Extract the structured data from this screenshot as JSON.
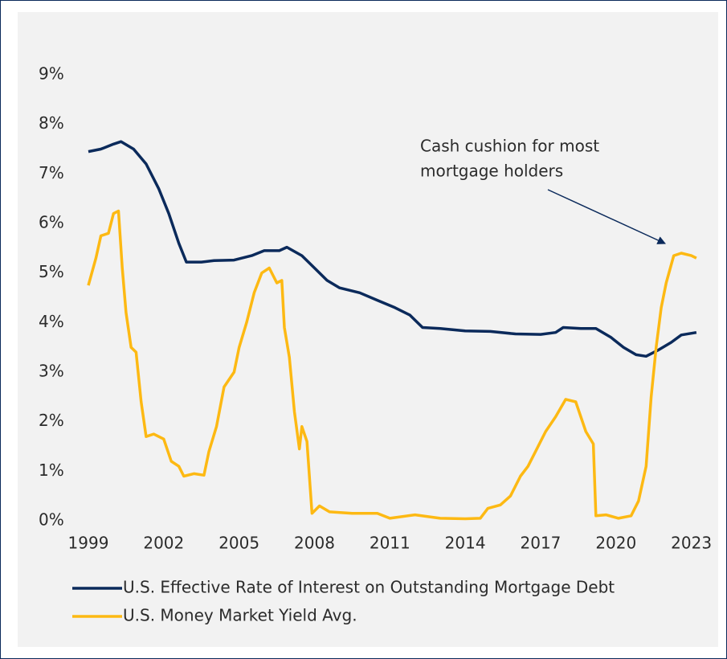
{
  "chart_data": {
    "type": "line",
    "annotation": {
      "lines": [
        "Cash cushion for most",
        "mortgage holders"
      ]
    },
    "xlim": [
      1999,
      2023.3
    ],
    "xticks": [
      1999,
      2002,
      2005,
      2008,
      2011,
      2014,
      2017,
      2020,
      2023
    ],
    "ylim": [
      0,
      9
    ],
    "yticks": [
      {
        "value": 0,
        "label": "0%"
      },
      {
        "value": 1,
        "label": "1%"
      },
      {
        "value": 2,
        "label": "2%"
      },
      {
        "value": 3,
        "label": "3%"
      },
      {
        "value": 4,
        "label": "4%"
      },
      {
        "value": 5,
        "label": "5%"
      },
      {
        "value": 6,
        "label": "6%"
      },
      {
        "value": 7,
        "label": "7%"
      },
      {
        "value": 8,
        "label": "8%"
      },
      {
        "value": 9,
        "label": "9%"
      }
    ],
    "series": [
      {
        "name": "U.S. Effective Rate of Interest on Outstanding Mortgage Debt",
        "color": "#0b2a5b",
        "x": [
          1999,
          1999.5,
          2000,
          2000.3,
          2000.8,
          2001.3,
          2001.8,
          2002.2,
          2002.6,
          2002.9,
          2003.5,
          2004,
          2004.8,
          2005.5,
          2006,
          2006.6,
          2006.9,
          2007.5,
          2008,
          2008.5,
          2009,
          2009.8,
          2010.5,
          2011.2,
          2011.8,
          2012.3,
          2013,
          2014,
          2015,
          2016,
          2017,
          2017.6,
          2017.9,
          2018.6,
          2019.2,
          2019.8,
          2020.3,
          2020.8,
          2021.2,
          2021.7,
          2022.2,
          2022.6,
          2023.2
        ],
        "values": [
          7.45,
          7.5,
          7.6,
          7.65,
          7.5,
          7.2,
          6.7,
          6.2,
          5.6,
          5.22,
          5.22,
          5.25,
          5.26,
          5.35,
          5.45,
          5.45,
          5.52,
          5.35,
          5.1,
          4.85,
          4.7,
          4.6,
          4.45,
          4.3,
          4.15,
          3.9,
          3.88,
          3.83,
          3.82,
          3.77,
          3.76,
          3.8,
          3.9,
          3.88,
          3.88,
          3.7,
          3.5,
          3.35,
          3.32,
          3.45,
          3.6,
          3.75,
          3.8
        ]
      },
      {
        "name": "U.S. Money Market Yield Avg.",
        "color": "#fdb913",
        "x": [
          1999,
          1999.3,
          1999.5,
          1999.8,
          2000.0,
          2000.2,
          2000.35,
          2000.5,
          2000.7,
          2000.9,
          2001.1,
          2001.3,
          2001.6,
          2002.0,
          2002.3,
          2002.6,
          2002.8,
          2003.2,
          2003.6,
          2003.8,
          2004.1,
          2004.4,
          2004.8,
          2005.0,
          2005.3,
          2005.6,
          2005.9,
          2006.2,
          2006.5,
          2006.7,
          2006.8,
          2007.0,
          2007.2,
          2007.4,
          2007.5,
          2007.7,
          2007.9,
          2008.2,
          2008.6,
          2009.5,
          2010.5,
          2011.0,
          2012.0,
          2013.0,
          2014.0,
          2014.6,
          2014.9,
          2015.4,
          2015.8,
          2016.2,
          2016.5,
          2016.8,
          2017.2,
          2017.6,
          2018.0,
          2018.4,
          2018.8,
          2019.1,
          2019.2,
          2019.6,
          2020.1,
          2020.6,
          2020.9,
          2021.2,
          2021.4,
          2021.6,
          2021.8,
          2022.0,
          2022.3,
          2022.6,
          2023.0,
          2023.2
        ],
        "values": [
          4.75,
          5.3,
          5.75,
          5.8,
          6.2,
          6.25,
          5.1,
          4.2,
          3.5,
          3.4,
          2.4,
          1.7,
          1.75,
          1.65,
          1.2,
          1.1,
          0.9,
          0.95,
          0.92,
          1.4,
          1.9,
          2.7,
          3.0,
          3.5,
          4.0,
          4.6,
          5.0,
          5.1,
          4.8,
          4.85,
          3.9,
          3.3,
          2.2,
          1.45,
          1.9,
          1.6,
          0.15,
          0.3,
          0.18,
          0.15,
          0.15,
          0.05,
          0.12,
          0.05,
          0.04,
          0.05,
          0.25,
          0.32,
          0.5,
          0.9,
          1.1,
          1.4,
          1.8,
          2.1,
          2.45,
          2.4,
          1.8,
          1.55,
          0.1,
          0.12,
          0.05,
          0.1,
          0.4,
          1.1,
          2.5,
          3.5,
          4.3,
          4.8,
          5.35,
          5.4,
          5.35,
          5.3
        ]
      }
    ]
  }
}
